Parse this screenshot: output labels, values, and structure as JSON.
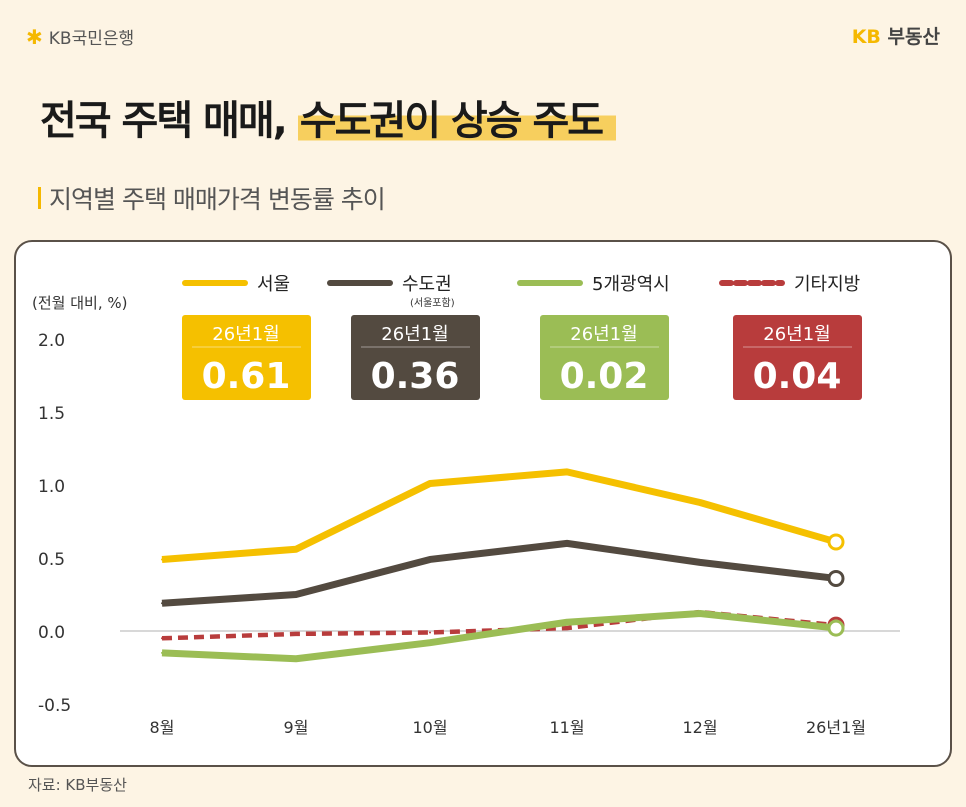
{
  "header": {
    "bank_logo": "KB국민은행",
    "brand_logo_kb": "KB",
    "brand_logo_text": "부동산"
  },
  "title": {
    "part1": "전국 주택 매매,",
    "highlight": "수도권이 상승 주도"
  },
  "subtitle": "지역별 주택 매매가격 변동률 추이",
  "source": "자료: KB부동산",
  "colors": {
    "seoul": "#f5c000",
    "capital": "#534a40",
    "metro": "#9bbd55",
    "other": "#b83c3c",
    "background": "#fdf4e4"
  },
  "chart_data": {
    "type": "line",
    "title": "지역별 주택 매매가격 변동률 추이",
    "ylabel": "(전월 대비, %)",
    "xlabel": "",
    "categories": [
      "8월",
      "9월",
      "10월",
      "11월",
      "12월",
      "26년1월"
    ],
    "ylim": [
      -0.5,
      2.0
    ],
    "yticks": [
      "2.0",
      "1.5",
      "1.0",
      "0.5",
      "0.0",
      "-0.5"
    ],
    "grid": "zero-line only",
    "legend_position": "top",
    "series": [
      {
        "name": "서울",
        "note": "",
        "color": "#f5c000",
        "dashed": false,
        "values": [
          0.49,
          0.56,
          1.01,
          1.09,
          0.88,
          0.61
        ]
      },
      {
        "name": "수도권",
        "note": "(서울포함)",
        "color": "#534a40",
        "dashed": false,
        "values": [
          0.19,
          0.25,
          0.49,
          0.6,
          0.47,
          0.36
        ]
      },
      {
        "name": "5개광역시",
        "note": "",
        "color": "#9bbd55",
        "dashed": false,
        "values": [
          -0.15,
          -0.19,
          -0.08,
          0.06,
          0.12,
          0.02
        ]
      },
      {
        "name": "기타지방",
        "note": "",
        "color": "#b83c3c",
        "dashed": true,
        "values": [
          -0.05,
          -0.02,
          -0.01,
          0.02,
          0.13,
          0.04
        ]
      }
    ],
    "callouts": [
      {
        "label": "26년1월",
        "value": "0.61",
        "color": "#f5c000"
      },
      {
        "label": "26년1월",
        "value": "0.36",
        "color": "#534a40"
      },
      {
        "label": "26년1월",
        "value": "0.02",
        "color": "#9bbd55"
      },
      {
        "label": "26년1월",
        "value": "0.04",
        "color": "#b83c3c"
      }
    ]
  }
}
